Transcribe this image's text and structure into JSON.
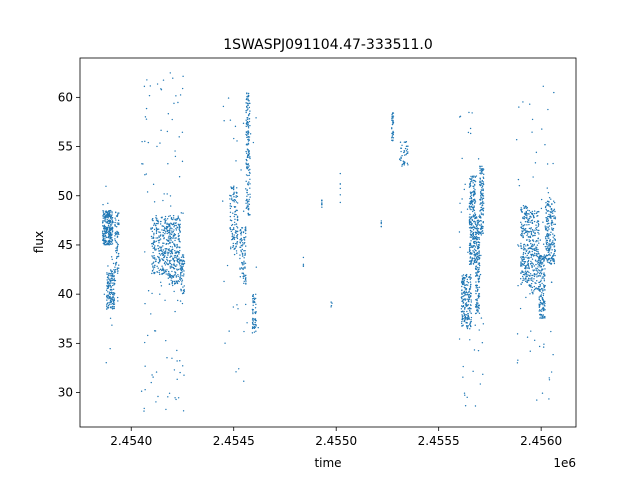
{
  "chart_data": {
    "type": "scatter",
    "title": "1SWASPJ091104.47-333511.0",
    "xlabel": "time",
    "ylabel": "flux",
    "x_offset_label": "1e6",
    "xlim": [
      2.45375,
      2.45617
    ],
    "ylim": [
      26.5,
      64.0
    ],
    "x_ticks": [
      2.454,
      2.4545,
      2.455,
      2.4555,
      2.456
    ],
    "x_tick_labels": [
      "2.4540",
      "2.4545",
      "2.4550",
      "2.4555",
      "2.4560"
    ],
    "y_ticks": [
      30,
      35,
      40,
      45,
      50,
      55,
      60
    ],
    "y_tick_labels": [
      "30",
      "35",
      "40",
      "45",
      "50",
      "55",
      "60"
    ],
    "grid": false,
    "legend": "none",
    "marker_color": "#1f77b4",
    "series": [
      {
        "clusters": [
          {
            "x": [
              2.45386,
              2.45391
            ],
            "y": [
              45.0,
              48.5
            ],
            "n": 260
          },
          {
            "x": [
              2.45388,
              2.45392
            ],
            "y": [
              38.5,
              42.5
            ],
            "n": 160
          },
          {
            "x": [
              2.45392,
              2.45394
            ],
            "y": [
              42.0,
              48.5
            ],
            "n": 70
          },
          {
            "x": [
              2.45386,
              2.45394
            ],
            "y": [
              33.0,
              52.0
            ],
            "n": 22
          },
          {
            "x": [
              2.4541,
              2.45418
            ],
            "y": [
              42.0,
              48.0
            ],
            "n": 240
          },
          {
            "x": [
              2.45418,
              2.45424
            ],
            "y": [
              41.0,
              48.0
            ],
            "n": 250
          },
          {
            "x": [
              2.45424,
              2.45426
            ],
            "y": [
              40.0,
              44.0
            ],
            "n": 60
          },
          {
            "x": [
              2.45405,
              2.45426
            ],
            "y": [
              28.0,
              62.5
            ],
            "n": 110
          },
          {
            "x": [
              2.45448,
              2.45452
            ],
            "y": [
              44.0,
              51.0
            ],
            "n": 110
          },
          {
            "x": [
              2.45453,
              2.45456
            ],
            "y": [
              41.0,
              47.0
            ],
            "n": 90
          },
          {
            "x": [
              2.45456,
              2.45458
            ],
            "y": [
              48.0,
              60.5
            ],
            "n": 160
          },
          {
            "x": [
              2.45459,
              2.45461
            ],
            "y": [
              36.0,
              40.0
            ],
            "n": 60
          },
          {
            "x": [
              2.45444,
              2.45462
            ],
            "y": [
              31.0,
              61.0
            ],
            "n": 40
          },
          {
            "x": [
              2.45484,
              2.45484
            ],
            "y": [
              42.8,
              43.8
            ],
            "n": 4
          },
          {
            "x": [
              2.45493,
              2.45493
            ],
            "y": [
              48.8,
              49.6
            ],
            "n": 10
          },
          {
            "x": [
              2.45497,
              2.45498
            ],
            "y": [
              38.5,
              39.2
            ],
            "n": 4
          },
          {
            "x": [
              2.45502,
              2.45502
            ],
            "y": [
              47.5,
              53.0
            ],
            "n": 6
          },
          {
            "x": [
              2.45522,
              2.45522
            ],
            "y": [
              46.8,
              47.5
            ],
            "n": 5
          },
          {
            "x": [
              2.45527,
              2.45528
            ],
            "y": [
              55.5,
              58.5
            ],
            "n": 35
          },
          {
            "x": [
              2.45531,
              2.45535
            ],
            "y": [
              53.0,
              55.5
            ],
            "n": 40
          },
          {
            "x": [
              2.45561,
              2.45566
            ],
            "y": [
              36.5,
              42.0
            ],
            "n": 200
          },
          {
            "x": [
              2.45565,
              2.45568
            ],
            "y": [
              43.0,
              52.0
            ],
            "n": 240
          },
          {
            "x": [
              2.45568,
              2.4557
            ],
            "y": [
              38.0,
              48.0
            ],
            "n": 180
          },
          {
            "x": [
              2.4557,
              2.45572
            ],
            "y": [
              46.0,
              53.0
            ],
            "n": 120
          },
          {
            "x": [
              2.4556,
              2.45572
            ],
            "y": [
              28.5,
              58.5
            ],
            "n": 60
          },
          {
            "x": [
              2.4559,
              2.45594
            ],
            "y": [
              41.0,
              49.0
            ],
            "n": 200
          },
          {
            "x": [
              2.45594,
              2.45599
            ],
            "y": [
              40.0,
              48.5
            ],
            "n": 220
          },
          {
            "x": [
              2.45599,
              2.45602
            ],
            "y": [
              37.5,
              44.0
            ],
            "n": 160
          },
          {
            "x": [
              2.45602,
              2.45607
            ],
            "y": [
              43.0,
              49.5
            ],
            "n": 200
          },
          {
            "x": [
              2.45588,
              2.45607
            ],
            "y": [
              29.0,
              61.5
            ],
            "n": 60
          }
        ]
      }
    ]
  }
}
